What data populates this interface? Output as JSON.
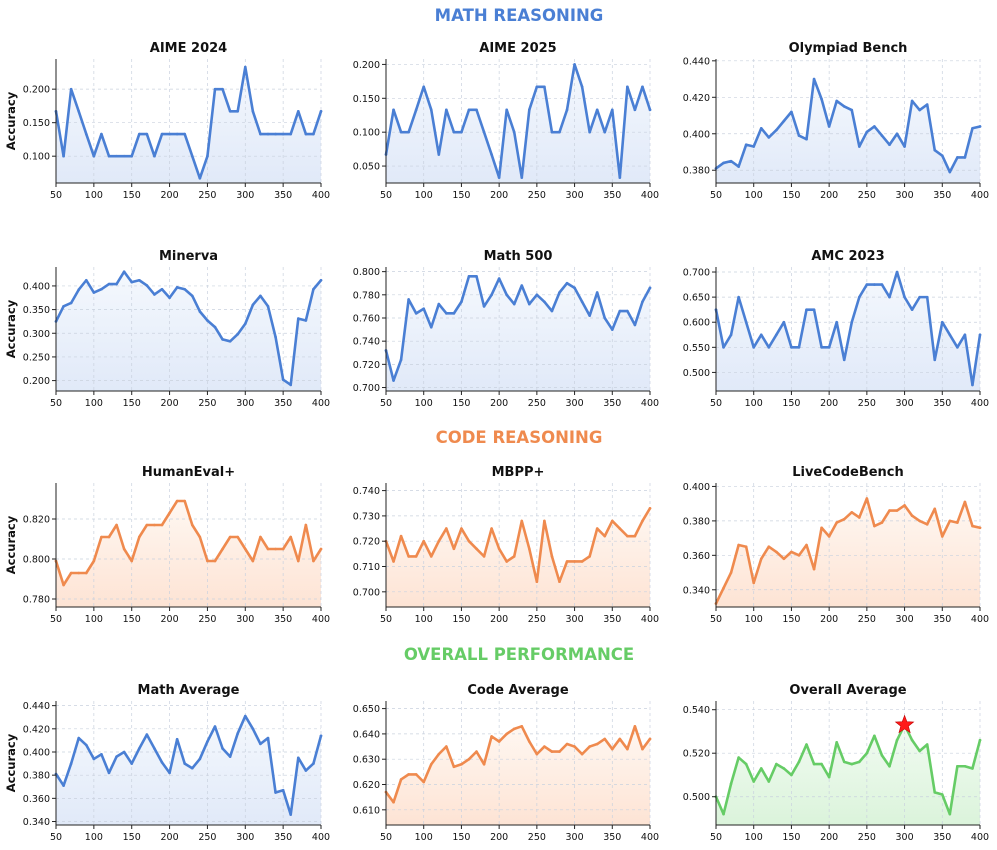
{
  "sections": {
    "math": {
      "title": "MATH REASONING",
      "color": "#4a7fd4"
    },
    "code": {
      "title": "CODE REASONING",
      "color": "#ef8a4e"
    },
    "overall": {
      "title": "OVERALL PERFORMANCE",
      "color": "#66cc66"
    }
  },
  "colors": {
    "math_line": "#4a7fd4",
    "math_fill_top": "#f4f8fd",
    "math_fill_bottom": "#dfe8f8",
    "code_line": "#ef8a4e",
    "code_fill_top": "#fff7f1",
    "code_fill_bottom": "#fde2d2",
    "overall_line": "#66cc66",
    "overall_fill_top": "#f1fbf1",
    "overall_fill_bottom": "#d9f3d9",
    "star": "#ff1a1a"
  },
  "chart_data": [
    {
      "id": "aime2024",
      "type": "area",
      "theme": "math",
      "title": "AIME 2024",
      "ylabel": "Accuracy",
      "x": [
        50,
        60,
        70,
        80,
        90,
        100,
        110,
        120,
        130,
        140,
        150,
        160,
        170,
        180,
        190,
        200,
        210,
        220,
        230,
        240,
        250,
        260,
        270,
        280,
        290,
        300,
        310,
        320,
        330,
        340,
        350,
        360,
        370,
        380,
        390,
        400
      ],
      "y": [
        0.167,
        0.1,
        0.2,
        0.167,
        0.133,
        0.1,
        0.133,
        0.1,
        0.1,
        0.1,
        0.1,
        0.133,
        0.133,
        0.1,
        0.133,
        0.133,
        0.133,
        0.133,
        0.1,
        0.067,
        0.1,
        0.2,
        0.2,
        0.167,
        0.167,
        0.233,
        0.167,
        0.133,
        0.133,
        0.133,
        0.133,
        0.133,
        0.167,
        0.133,
        0.133,
        0.167
      ],
      "xlim": [
        50,
        400
      ],
      "ylim": [
        0.06,
        0.245
      ],
      "xticks": [
        50,
        100,
        150,
        200,
        250,
        300,
        350,
        400
      ],
      "yticks": [
        0.1,
        0.15,
        0.2
      ],
      "yticklabels": [
        "0.100",
        "0.150",
        "0.200"
      ]
    },
    {
      "id": "aime2025",
      "type": "area",
      "theme": "math",
      "title": "AIME 2025",
      "ylabel": "",
      "x": [
        50,
        60,
        70,
        80,
        90,
        100,
        110,
        120,
        130,
        140,
        150,
        160,
        170,
        180,
        190,
        200,
        210,
        220,
        230,
        240,
        250,
        260,
        270,
        280,
        290,
        300,
        310,
        320,
        330,
        340,
        350,
        360,
        370,
        380,
        390,
        400
      ],
      "y": [
        0.067,
        0.133,
        0.1,
        0.1,
        0.133,
        0.167,
        0.133,
        0.067,
        0.133,
        0.1,
        0.1,
        0.133,
        0.133,
        0.1,
        0.067,
        0.033,
        0.133,
        0.1,
        0.033,
        0.133,
        0.167,
        0.167,
        0.1,
        0.1,
        0.133,
        0.2,
        0.167,
        0.1,
        0.133,
        0.1,
        0.133,
        0.033,
        0.167,
        0.133,
        0.167,
        0.133
      ],
      "xlim": [
        50,
        400
      ],
      "ylim": [
        0.025,
        0.208
      ],
      "xticks": [
        50,
        100,
        150,
        200,
        250,
        300,
        350,
        400
      ],
      "yticks": [
        0.05,
        0.1,
        0.15,
        0.2
      ],
      "yticklabels": [
        "0.050",
        "0.100",
        "0.150",
        "0.200"
      ]
    },
    {
      "id": "olympiad",
      "type": "area",
      "theme": "math",
      "title": "Olympiad Bench",
      "ylabel": "",
      "x": [
        50,
        60,
        70,
        80,
        90,
        100,
        110,
        120,
        130,
        140,
        150,
        160,
        170,
        180,
        190,
        200,
        210,
        220,
        230,
        240,
        250,
        260,
        270,
        280,
        290,
        300,
        310,
        320,
        330,
        340,
        350,
        360,
        370,
        380,
        390,
        400
      ],
      "y": [
        0.381,
        0.384,
        0.385,
        0.382,
        0.394,
        0.393,
        0.403,
        0.398,
        0.402,
        0.407,
        0.412,
        0.399,
        0.397,
        0.43,
        0.419,
        0.404,
        0.418,
        0.415,
        0.413,
        0.393,
        0.401,
        0.404,
        0.399,
        0.394,
        0.4,
        0.393,
        0.418,
        0.413,
        0.416,
        0.391,
        0.388,
        0.379,
        0.387,
        0.387,
        0.403,
        0.404
      ],
      "xlim": [
        50,
        400
      ],
      "ylim": [
        0.373,
        0.441
      ],
      "xticks": [
        50,
        100,
        150,
        200,
        250,
        300,
        350,
        400
      ],
      "yticks": [
        0.38,
        0.4,
        0.42,
        0.44
      ],
      "yticklabels": [
        "0.380",
        "0.400",
        "0.420",
        "0.440"
      ]
    },
    {
      "id": "minerva",
      "type": "area",
      "theme": "math",
      "title": "Minerva",
      "ylabel": "Accuracy",
      "x": [
        50,
        60,
        70,
        80,
        90,
        100,
        110,
        120,
        130,
        140,
        150,
        160,
        170,
        180,
        190,
        200,
        210,
        220,
        230,
        240,
        250,
        260,
        270,
        280,
        290,
        300,
        310,
        320,
        330,
        340,
        350,
        360,
        370,
        380,
        390,
        400
      ],
      "y": [
        0.325,
        0.357,
        0.364,
        0.392,
        0.412,
        0.386,
        0.393,
        0.404,
        0.404,
        0.43,
        0.408,
        0.412,
        0.401,
        0.382,
        0.393,
        0.375,
        0.397,
        0.393,
        0.379,
        0.346,
        0.327,
        0.313,
        0.287,
        0.283,
        0.298,
        0.32,
        0.36,
        0.379,
        0.357,
        0.292,
        0.202,
        0.191,
        0.331,
        0.327,
        0.393,
        0.412
      ],
      "xlim": [
        50,
        400
      ],
      "ylim": [
        0.178,
        0.44
      ],
      "xticks": [
        50,
        100,
        150,
        200,
        250,
        300,
        350,
        400
      ],
      "yticks": [
        0.2,
        0.25,
        0.3,
        0.35,
        0.4
      ],
      "yticklabels": [
        "0.200",
        "0.250",
        "0.300",
        "0.350",
        "0.400"
      ]
    },
    {
      "id": "math500",
      "type": "area",
      "theme": "math",
      "title": "Math 500",
      "ylabel": "",
      "x": [
        50,
        60,
        70,
        80,
        90,
        100,
        110,
        120,
        130,
        140,
        150,
        160,
        170,
        180,
        190,
        200,
        210,
        220,
        230,
        240,
        250,
        260,
        270,
        280,
        290,
        300,
        310,
        320,
        330,
        340,
        350,
        360,
        370,
        380,
        390,
        400
      ],
      "y": [
        0.732,
        0.706,
        0.724,
        0.776,
        0.764,
        0.768,
        0.752,
        0.772,
        0.764,
        0.764,
        0.774,
        0.796,
        0.796,
        0.77,
        0.78,
        0.794,
        0.78,
        0.772,
        0.788,
        0.772,
        0.78,
        0.774,
        0.766,
        0.782,
        0.79,
        0.786,
        0.774,
        0.762,
        0.782,
        0.76,
        0.75,
        0.766,
        0.766,
        0.754,
        0.774,
        0.786
      ],
      "xlim": [
        50,
        400
      ],
      "ylim": [
        0.697,
        0.804
      ],
      "xticks": [
        50,
        100,
        150,
        200,
        250,
        300,
        350,
        400
      ],
      "yticks": [
        0.7,
        0.72,
        0.74,
        0.76,
        0.78,
        0.8
      ],
      "yticklabels": [
        "0.700",
        "0.720",
        "0.740",
        "0.760",
        "0.780",
        "0.800"
      ]
    },
    {
      "id": "amc2023",
      "type": "area",
      "theme": "math",
      "title": "AMC 2023",
      "ylabel": "",
      "x": [
        50,
        60,
        70,
        80,
        90,
        100,
        110,
        120,
        130,
        140,
        150,
        160,
        170,
        180,
        190,
        200,
        210,
        220,
        230,
        240,
        250,
        260,
        270,
        280,
        290,
        300,
        310,
        320,
        330,
        340,
        350,
        360,
        370,
        380,
        390,
        400
      ],
      "y": [
        0.625,
        0.55,
        0.575,
        0.65,
        0.6,
        0.55,
        0.575,
        0.55,
        0.575,
        0.6,
        0.55,
        0.55,
        0.625,
        0.625,
        0.55,
        0.55,
        0.6,
        0.525,
        0.6,
        0.65,
        0.675,
        0.675,
        0.675,
        0.65,
        0.7,
        0.65,
        0.625,
        0.65,
        0.65,
        0.525,
        0.6,
        0.575,
        0.55,
        0.575,
        0.475,
        0.575
      ],
      "xlim": [
        50,
        400
      ],
      "ylim": [
        0.463,
        0.71
      ],
      "xticks": [
        50,
        100,
        150,
        200,
        250,
        300,
        350,
        400
      ],
      "yticks": [
        0.5,
        0.55,
        0.6,
        0.65,
        0.7
      ],
      "yticklabels": [
        "0.500",
        "0.550",
        "0.600",
        "0.650",
        "0.700"
      ]
    },
    {
      "id": "humaneval",
      "type": "area",
      "theme": "code",
      "title": "HumanEval+",
      "ylabel": "Accuracy",
      "x": [
        50,
        60,
        70,
        80,
        90,
        100,
        110,
        120,
        130,
        140,
        150,
        160,
        170,
        180,
        190,
        200,
        210,
        220,
        230,
        240,
        250,
        260,
        270,
        280,
        290,
        300,
        310,
        320,
        330,
        340,
        350,
        360,
        370,
        380,
        390,
        400
      ],
      "y": [
        0.799,
        0.787,
        0.793,
        0.793,
        0.793,
        0.799,
        0.811,
        0.811,
        0.817,
        0.805,
        0.799,
        0.811,
        0.817,
        0.817,
        0.817,
        0.823,
        0.829,
        0.829,
        0.817,
        0.811,
        0.799,
        0.799,
        0.805,
        0.811,
        0.811,
        0.805,
        0.799,
        0.811,
        0.805,
        0.805,
        0.805,
        0.811,
        0.799,
        0.817,
        0.799,
        0.805
      ],
      "xlim": [
        50,
        400
      ],
      "ylim": [
        0.776,
        0.838
      ],
      "xticks": [
        50,
        100,
        150,
        200,
        250,
        300,
        350,
        400
      ],
      "yticks": [
        0.78,
        0.8,
        0.82
      ],
      "yticklabels": [
        "0.780",
        "0.800",
        "0.820"
      ]
    },
    {
      "id": "mbpp",
      "type": "area",
      "theme": "code",
      "title": "MBPP+",
      "ylabel": "",
      "x": [
        50,
        60,
        70,
        80,
        90,
        100,
        110,
        120,
        130,
        140,
        150,
        160,
        170,
        180,
        190,
        200,
        210,
        220,
        230,
        240,
        250,
        260,
        270,
        280,
        290,
        300,
        310,
        320,
        330,
        340,
        350,
        360,
        370,
        380,
        390,
        400
      ],
      "y": [
        0.72,
        0.712,
        0.722,
        0.714,
        0.714,
        0.72,
        0.714,
        0.72,
        0.725,
        0.717,
        0.725,
        0.72,
        0.717,
        0.714,
        0.725,
        0.717,
        0.712,
        0.714,
        0.728,
        0.717,
        0.704,
        0.728,
        0.714,
        0.704,
        0.712,
        0.712,
        0.712,
        0.714,
        0.725,
        0.722,
        0.728,
        0.725,
        0.722,
        0.722,
        0.728,
        0.733
      ],
      "xlim": [
        50,
        400
      ],
      "ylim": [
        0.694,
        0.743
      ],
      "xticks": [
        50,
        100,
        150,
        200,
        250,
        300,
        350,
        400
      ],
      "yticks": [
        0.7,
        0.71,
        0.72,
        0.73,
        0.74
      ],
      "yticklabels": [
        "0.700",
        "0.710",
        "0.720",
        "0.730",
        "0.740"
      ]
    },
    {
      "id": "livecode",
      "type": "area",
      "theme": "code",
      "title": "LiveCodeBench",
      "ylabel": "",
      "x": [
        50,
        60,
        70,
        80,
        90,
        100,
        110,
        120,
        130,
        140,
        150,
        160,
        170,
        180,
        190,
        200,
        210,
        220,
        230,
        240,
        250,
        260,
        270,
        280,
        290,
        300,
        310,
        320,
        330,
        340,
        350,
        360,
        370,
        380,
        390,
        400
      ],
      "y": [
        0.332,
        0.341,
        0.35,
        0.366,
        0.365,
        0.344,
        0.358,
        0.365,
        0.362,
        0.358,
        0.362,
        0.36,
        0.366,
        0.352,
        0.376,
        0.371,
        0.379,
        0.381,
        0.385,
        0.382,
        0.393,
        0.377,
        0.379,
        0.386,
        0.386,
        0.389,
        0.383,
        0.38,
        0.378,
        0.387,
        0.371,
        0.38,
        0.379,
        0.391,
        0.377,
        0.376
      ],
      "xlim": [
        50,
        400
      ],
      "ylim": [
        0.33,
        0.402
      ],
      "xticks": [
        50,
        100,
        150,
        200,
        250,
        300,
        350,
        400
      ],
      "yticks": [
        0.34,
        0.36,
        0.38,
        0.4
      ],
      "yticklabels": [
        "0.340",
        "0.360",
        "0.380",
        "0.400"
      ]
    },
    {
      "id": "mathavg",
      "type": "area",
      "theme": "math",
      "title": "Math Average",
      "ylabel": "Accuracy",
      "x": [
        50,
        60,
        70,
        80,
        90,
        100,
        110,
        120,
        130,
        140,
        150,
        160,
        170,
        180,
        190,
        200,
        210,
        220,
        230,
        240,
        250,
        260,
        270,
        280,
        290,
        300,
        310,
        320,
        330,
        340,
        350,
        360,
        370,
        380,
        390,
        400
      ],
      "y": [
        0.381,
        0.371,
        0.39,
        0.412,
        0.406,
        0.394,
        0.398,
        0.382,
        0.396,
        0.4,
        0.39,
        0.403,
        0.415,
        0.403,
        0.391,
        0.382,
        0.411,
        0.39,
        0.386,
        0.394,
        0.409,
        0.422,
        0.403,
        0.396,
        0.416,
        0.431,
        0.42,
        0.407,
        0.412,
        0.365,
        0.367,
        0.346,
        0.395,
        0.384,
        0.39,
        0.414
      ],
      "xlim": [
        50,
        400
      ],
      "ylim": [
        0.337,
        0.444
      ],
      "xticks": [
        50,
        100,
        150,
        200,
        250,
        300,
        350,
        400
      ],
      "yticks": [
        0.34,
        0.36,
        0.38,
        0.4,
        0.42,
        0.44
      ],
      "yticklabels": [
        "0.340",
        "0.360",
        "0.380",
        "0.400",
        "0.420",
        "0.440"
      ]
    },
    {
      "id": "codeavg",
      "type": "area",
      "theme": "code",
      "title": "Code Average",
      "ylabel": "",
      "x": [
        50,
        60,
        70,
        80,
        90,
        100,
        110,
        120,
        130,
        140,
        150,
        160,
        170,
        180,
        190,
        200,
        210,
        220,
        230,
        240,
        250,
        260,
        270,
        280,
        290,
        300,
        310,
        320,
        330,
        340,
        350,
        360,
        370,
        380,
        390,
        400
      ],
      "y": [
        0.617,
        0.613,
        0.622,
        0.624,
        0.624,
        0.621,
        0.628,
        0.632,
        0.635,
        0.627,
        0.628,
        0.63,
        0.633,
        0.628,
        0.639,
        0.637,
        0.64,
        0.642,
        0.643,
        0.637,
        0.632,
        0.635,
        0.633,
        0.633,
        0.636,
        0.635,
        0.632,
        0.635,
        0.636,
        0.638,
        0.634,
        0.638,
        0.634,
        0.643,
        0.634,
        0.638
      ],
      "xlim": [
        50,
        400
      ],
      "ylim": [
        0.604,
        0.653
      ],
      "xticks": [
        50,
        100,
        150,
        200,
        250,
        300,
        350,
        400
      ],
      "yticks": [
        0.61,
        0.62,
        0.63,
        0.64,
        0.65
      ],
      "yticklabels": [
        "0.610",
        "0.620",
        "0.630",
        "0.640",
        "0.650"
      ]
    },
    {
      "id": "overallavg",
      "type": "area",
      "theme": "overall",
      "title": "Overall Average",
      "ylabel": "",
      "x": [
        50,
        60,
        70,
        80,
        90,
        100,
        110,
        120,
        130,
        140,
        150,
        160,
        170,
        180,
        190,
        200,
        210,
        220,
        230,
        240,
        250,
        260,
        270,
        280,
        290,
        300,
        310,
        320,
        330,
        340,
        350,
        360,
        370,
        380,
        390,
        400
      ],
      "y": [
        0.5,
        0.492,
        0.506,
        0.518,
        0.515,
        0.507,
        0.513,
        0.507,
        0.515,
        0.513,
        0.51,
        0.516,
        0.524,
        0.515,
        0.515,
        0.509,
        0.525,
        0.516,
        0.515,
        0.516,
        0.52,
        0.528,
        0.519,
        0.514,
        0.526,
        0.533,
        0.526,
        0.521,
        0.524,
        0.502,
        0.501,
        0.492,
        0.514,
        0.514,
        0.513,
        0.526
      ],
      "xlim": [
        50,
        400
      ],
      "ylim": [
        0.487,
        0.544
      ],
      "xticks": [
        50,
        100,
        150,
        200,
        250,
        300,
        350,
        400
      ],
      "yticks": [
        0.5,
        0.52,
        0.54
      ],
      "yticklabels": [
        "0.500",
        "0.520",
        "0.540"
      ],
      "highlight": {
        "x": 300,
        "y": 0.533,
        "marker": "star"
      }
    }
  ]
}
